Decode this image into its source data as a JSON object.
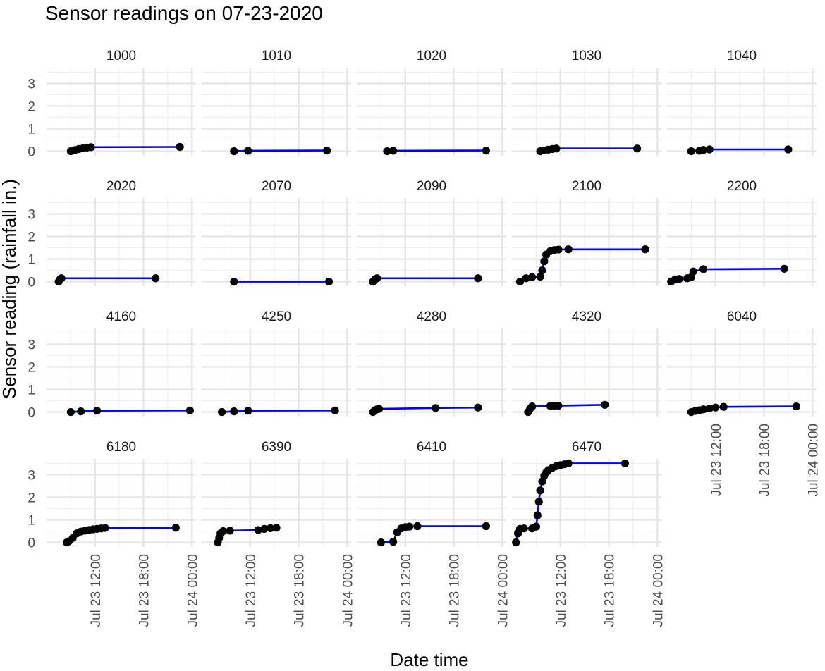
{
  "chart_data": {
    "type": "line",
    "title": "Sensor readings on 07-23-2020",
    "xlabel": "Date time",
    "ylabel": "Sensor reading (rainfall in.)",
    "xlim": [
      "2020-07-23 06:00",
      "2020-07-24 00:30"
    ],
    "x_ticks": [
      "2020-07-23 12:00",
      "2020-07-23 18:00",
      "2020-07-24 00:00"
    ],
    "x_tick_labels": [
      "Jul 23 12:00",
      "Jul 23 18:00",
      "Jul 24 00:00"
    ],
    "ylim": [
      -0.2,
      3.7
    ],
    "y_ticks": [
      0,
      1,
      2,
      3
    ],
    "y_tick_labels": [
      "0",
      "1",
      "2",
      "3"
    ],
    "grid": true,
    "line_color": "#0000ff",
    "point_color": "#000000",
    "panel_order": [
      "1000",
      "1010",
      "1020",
      "1030",
      "1040",
      "2020",
      "2070",
      "2090",
      "2100",
      "2200",
      "4160",
      "4250",
      "4280",
      "4320",
      "6040",
      "6180",
      "6390",
      "6410",
      "6470"
    ],
    "panels": {
      "1000": [
        [
          "2020-07-23 09:00",
          0
        ],
        [
          "2020-07-23 09:30",
          0.05
        ],
        [
          "2020-07-23 10:00",
          0.1
        ],
        [
          "2020-07-23 10:30",
          0.13
        ],
        [
          "2020-07-23 11:00",
          0.16
        ],
        [
          "2020-07-23 11:30",
          0.18
        ],
        [
          "2020-07-23 22:30",
          0.19
        ]
      ],
      "1010": [
        [
          "2020-07-23 10:00",
          0
        ],
        [
          "2020-07-23 11:45",
          0.02
        ],
        [
          "2020-07-23 21:30",
          0.03
        ]
      ],
      "1020": [
        [
          "2020-07-23 09:45",
          0
        ],
        [
          "2020-07-23 10:30",
          0.02
        ],
        [
          "2020-07-23 22:00",
          0.03
        ]
      ],
      "1030": [
        [
          "2020-07-23 09:30",
          0
        ],
        [
          "2020-07-23 10:00",
          0.04
        ],
        [
          "2020-07-23 10:30",
          0.07
        ],
        [
          "2020-07-23 11:00",
          0.1
        ],
        [
          "2020-07-23 11:30",
          0.12
        ],
        [
          "2020-07-23 21:30",
          0.12
        ]
      ],
      "1040": [
        [
          "2020-07-23 09:00",
          0
        ],
        [
          "2020-07-23 10:00",
          0.02
        ],
        [
          "2020-07-23 10:30",
          0.06
        ],
        [
          "2020-07-23 11:15",
          0.08
        ],
        [
          "2020-07-23 21:00",
          0.08
        ]
      ],
      "2020": [
        [
          "2020-07-23 07:30",
          0
        ],
        [
          "2020-07-23 07:40",
          0.1
        ],
        [
          "2020-07-23 07:50",
          0.15
        ],
        [
          "2020-07-23 19:30",
          0.15
        ]
      ],
      "2070": [
        [
          "2020-07-23 10:00",
          0
        ],
        [
          "2020-07-23 21:45",
          0
        ]
      ],
      "2090": [
        [
          "2020-07-23 08:00",
          0
        ],
        [
          "2020-07-23 08:15",
          0.1
        ],
        [
          "2020-07-23 08:30",
          0.15
        ],
        [
          "2020-07-23 21:00",
          0.15
        ]
      ],
      "2100": [
        [
          "2020-07-23 07:00",
          0
        ],
        [
          "2020-07-23 07:45",
          0.15
        ],
        [
          "2020-07-23 08:30",
          0.2
        ],
        [
          "2020-07-23 09:30",
          0.22
        ],
        [
          "2020-07-23 09:45",
          0.5
        ],
        [
          "2020-07-23 10:00",
          0.9
        ],
        [
          "2020-07-23 10:15",
          1.2
        ],
        [
          "2020-07-23 10:45",
          1.35
        ],
        [
          "2020-07-23 11:15",
          1.4
        ],
        [
          "2020-07-23 11:45",
          1.42
        ],
        [
          "2020-07-23 13:00",
          1.43
        ],
        [
          "2020-07-23 22:30",
          1.43
        ]
      ],
      "2200": [
        [
          "2020-07-23 06:30",
          0
        ],
        [
          "2020-07-23 07:00",
          0.1
        ],
        [
          "2020-07-23 07:30",
          0.12
        ],
        [
          "2020-07-23 08:30",
          0.15
        ],
        [
          "2020-07-23 09:00",
          0.2
        ],
        [
          "2020-07-23 09:15",
          0.45
        ],
        [
          "2020-07-23 10:30",
          0.55
        ],
        [
          "2020-07-23 20:30",
          0.57
        ]
      ],
      "4160": [
        [
          "2020-07-23 09:00",
          0
        ],
        [
          "2020-07-23 10:15",
          0.03
        ],
        [
          "2020-07-23 12:15",
          0.06
        ],
        [
          "2020-07-23 23:45",
          0.07
        ]
      ],
      "4250": [
        [
          "2020-07-23 08:30",
          0
        ],
        [
          "2020-07-23 10:00",
          0.03
        ],
        [
          "2020-07-23 11:45",
          0.06
        ],
        [
          "2020-07-23 22:30",
          0.07
        ]
      ],
      "4280": [
        [
          "2020-07-23 08:00",
          0
        ],
        [
          "2020-07-23 08:15",
          0.08
        ],
        [
          "2020-07-23 08:30",
          0.12
        ],
        [
          "2020-07-23 08:45",
          0.14
        ],
        [
          "2020-07-23 15:45",
          0.18
        ],
        [
          "2020-07-23 21:00",
          0.2
        ]
      ],
      "4320": [
        [
          "2020-07-23 08:00",
          0
        ],
        [
          "2020-07-23 08:15",
          0.15
        ],
        [
          "2020-07-23 08:30",
          0.25
        ],
        [
          "2020-07-23 10:45",
          0.27
        ],
        [
          "2020-07-23 11:15",
          0.28
        ],
        [
          "2020-07-23 11:45",
          0.28
        ],
        [
          "2020-07-23 17:30",
          0.32
        ]
      ],
      "6040": [
        [
          "2020-07-23 09:00",
          0
        ],
        [
          "2020-07-23 09:30",
          0.05
        ],
        [
          "2020-07-23 10:00",
          0.08
        ],
        [
          "2020-07-23 10:30",
          0.12
        ],
        [
          "2020-07-23 11:15",
          0.16
        ],
        [
          "2020-07-23 12:00",
          0.2
        ],
        [
          "2020-07-23 13:00",
          0.23
        ],
        [
          "2020-07-23 22:00",
          0.25
        ]
      ],
      "6180": [
        [
          "2020-07-23 08:30",
          0
        ],
        [
          "2020-07-23 08:45",
          0.05
        ],
        [
          "2020-07-23 09:15",
          0.2
        ],
        [
          "2020-07-23 09:45",
          0.4
        ],
        [
          "2020-07-23 10:15",
          0.48
        ],
        [
          "2020-07-23 10:45",
          0.52
        ],
        [
          "2020-07-23 11:15",
          0.55
        ],
        [
          "2020-07-23 11:45",
          0.58
        ],
        [
          "2020-07-23 12:15",
          0.6
        ],
        [
          "2020-07-23 12:45",
          0.62
        ],
        [
          "2020-07-23 13:15",
          0.64
        ],
        [
          "2020-07-23 22:00",
          0.65
        ]
      ],
      "6390": [
        [
          "2020-07-23 08:00",
          0
        ],
        [
          "2020-07-23 08:10",
          0.2
        ],
        [
          "2020-07-23 08:20",
          0.4
        ],
        [
          "2020-07-23 08:40",
          0.5
        ],
        [
          "2020-07-23 09:30",
          0.52
        ],
        [
          "2020-07-23 13:00",
          0.55
        ],
        [
          "2020-07-23 13:45",
          0.6
        ],
        [
          "2020-07-23 14:30",
          0.63
        ],
        [
          "2020-07-23 15:15",
          0.65
        ]
      ],
      "6410": [
        [
          "2020-07-23 09:00",
          0
        ],
        [
          "2020-07-23 10:30",
          0.03
        ],
        [
          "2020-07-23 11:00",
          0.45
        ],
        [
          "2020-07-23 11:30",
          0.62
        ],
        [
          "2020-07-23 12:00",
          0.68
        ],
        [
          "2020-07-23 12:30",
          0.7
        ],
        [
          "2020-07-23 13:30",
          0.72
        ],
        [
          "2020-07-23 22:00",
          0.72
        ]
      ],
      "6470": [
        [
          "2020-07-23 06:30",
          0
        ],
        [
          "2020-07-23 06:45",
          0.4
        ],
        [
          "2020-07-23 07:00",
          0.6
        ],
        [
          "2020-07-23 07:30",
          0.62
        ],
        [
          "2020-07-23 08:30",
          0.62
        ],
        [
          "2020-07-23 09:00",
          0.7
        ],
        [
          "2020-07-23 09:10",
          1.2
        ],
        [
          "2020-07-23 09:20",
          1.8
        ],
        [
          "2020-07-23 09:30",
          2.3
        ],
        [
          "2020-07-23 09:45",
          2.7
        ],
        [
          "2020-07-23 10:00",
          2.95
        ],
        [
          "2020-07-23 10:15",
          3.1
        ],
        [
          "2020-07-23 10:30",
          3.2
        ],
        [
          "2020-07-23 11:00",
          3.3
        ],
        [
          "2020-07-23 11:30",
          3.38
        ],
        [
          "2020-07-23 12:00",
          3.42
        ],
        [
          "2020-07-23 12:30",
          3.46
        ],
        [
          "2020-07-23 13:00",
          3.5
        ],
        [
          "2020-07-23 20:00",
          3.5
        ]
      ]
    }
  }
}
